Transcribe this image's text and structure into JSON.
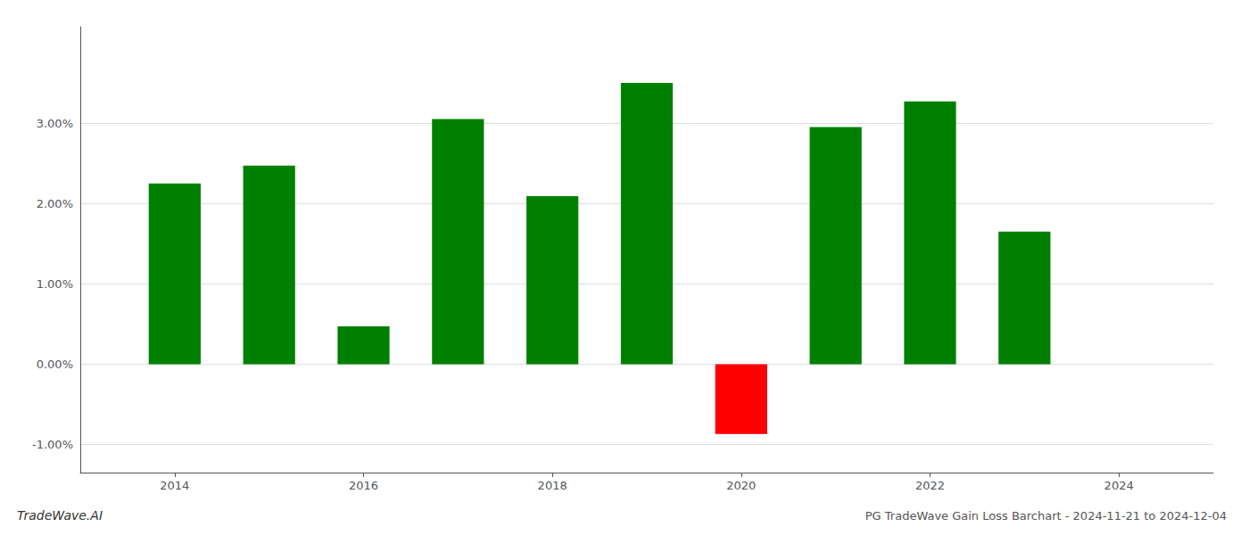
{
  "chart_data": {
    "type": "bar",
    "title": "PG TradeWave Gain Loss Barchart - 2024-11-21 to 2024-12-04",
    "annotations": [
      "TradeWave.AI"
    ],
    "x": [
      2014,
      2015,
      2016,
      2017,
      2018,
      2019,
      2020,
      2021,
      2022,
      2023
    ],
    "values": [
      0.0225,
      0.0247,
      0.0047,
      0.0305,
      0.0209,
      0.035,
      -0.0087,
      0.0295,
      0.0327,
      0.0165
    ],
    "colors": [
      "#008000",
      "#008000",
      "#008000",
      "#008000",
      "#008000",
      "#008000",
      "#ff0000",
      "#008000",
      "#008000",
      "#008000"
    ],
    "xlim": [
      2013.0,
      2025.0
    ],
    "xticks": [
      2014,
      2016,
      2018,
      2020,
      2022,
      2024
    ],
    "ylim": [
      -0.0135,
      0.042
    ],
    "yticks": [
      {
        "value": -0.01,
        "label": "-1.00%"
      },
      {
        "value": 0.0,
        "label": "0.00%"
      },
      {
        "value": 0.01,
        "label": "1.00%"
      },
      {
        "value": 0.02,
        "label": "2.00%"
      },
      {
        "value": 0.03,
        "label": "3.00%"
      }
    ],
    "grid": true
  }
}
